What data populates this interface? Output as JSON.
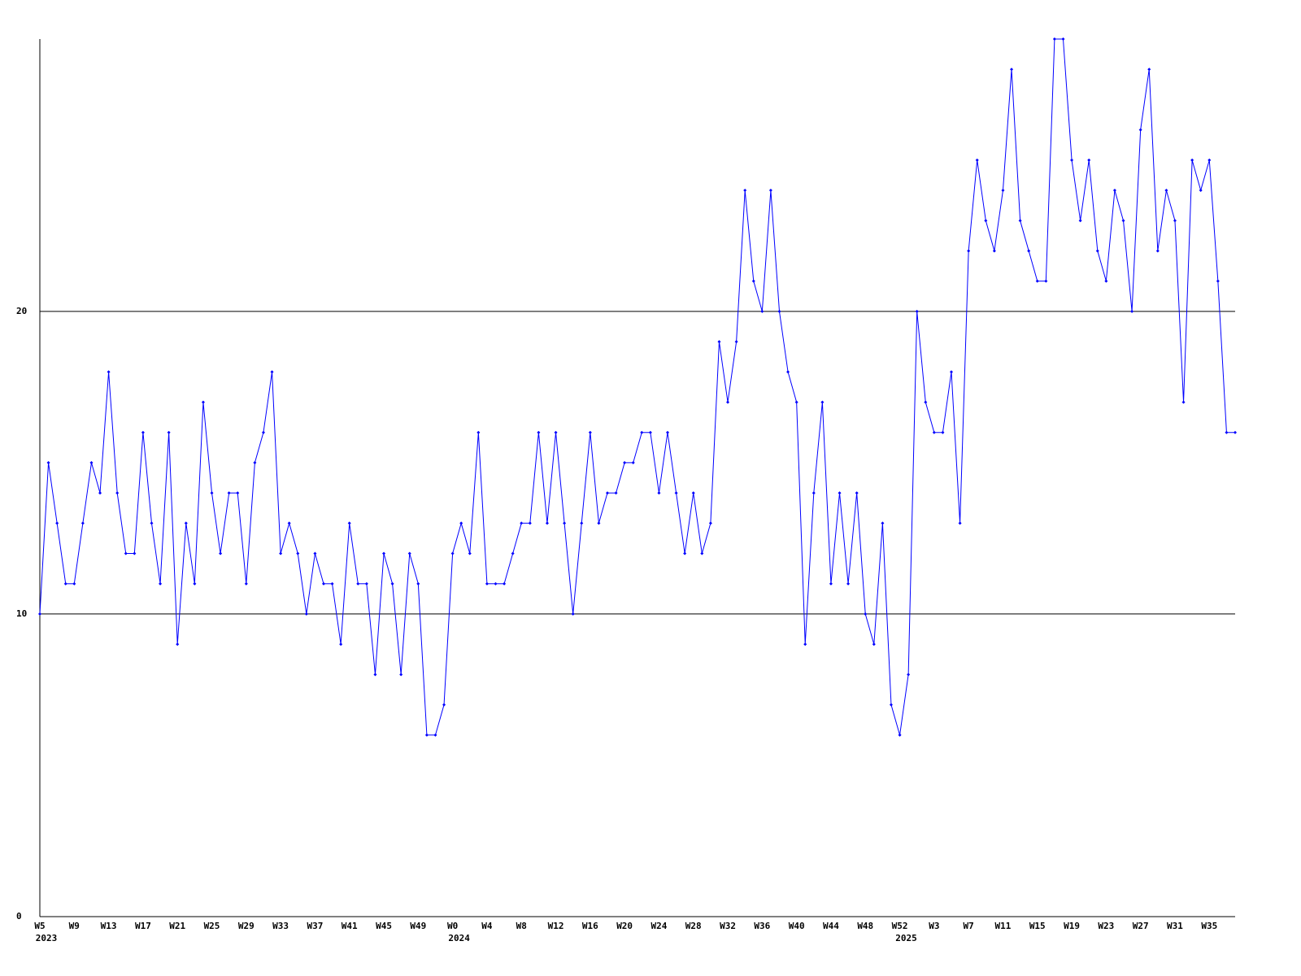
{
  "chart_data": {
    "type": "line",
    "categories": [
      "W5",
      null,
      null,
      null,
      "W9",
      null,
      null,
      null,
      "W13",
      null,
      null,
      null,
      "W17",
      null,
      null,
      null,
      "W21",
      null,
      null,
      null,
      "W25",
      null,
      null,
      null,
      "W29",
      null,
      null,
      null,
      "W33",
      null,
      null,
      null,
      "W37",
      null,
      null,
      null,
      "W41",
      null,
      null,
      null,
      "W45",
      null,
      null,
      null,
      "W49",
      null,
      null,
      null,
      "W0",
      null,
      null,
      null,
      "W4",
      null,
      null,
      null,
      "W8",
      null,
      null,
      null,
      "W12",
      null,
      null,
      null,
      "W16",
      null,
      null,
      null,
      "W20",
      null,
      null,
      null,
      "W24",
      null,
      null,
      null,
      "W28",
      null,
      null,
      null,
      "W32",
      null,
      null,
      null,
      "W36",
      null,
      null,
      null,
      "W40",
      null,
      null,
      null,
      "W44",
      null,
      null,
      null,
      "W48",
      null,
      null,
      null,
      "W52",
      null,
      null,
      null,
      "W3",
      null,
      null,
      null,
      "W7",
      null,
      null,
      null,
      "W11",
      null,
      null,
      null,
      "W15",
      null,
      null,
      null,
      "W19",
      null,
      null,
      null,
      "W23",
      null,
      null,
      null,
      "W27",
      null,
      null,
      null,
      "W31",
      null,
      null,
      null,
      "W35",
      null,
      null,
      null
    ],
    "years": [
      "2023",
      null,
      null,
      null,
      null,
      null,
      null,
      null,
      null,
      null,
      null,
      null,
      null,
      null,
      null,
      null,
      null,
      null,
      null,
      null,
      null,
      null,
      null,
      null,
      null,
      null,
      null,
      null,
      null,
      null,
      null,
      null,
      null,
      null,
      null,
      null,
      null,
      null,
      null,
      null,
      null,
      null,
      null,
      null,
      null,
      null,
      null,
      null,
      "2024",
      null,
      null,
      null,
      null,
      null,
      null,
      null,
      null,
      null,
      null,
      null,
      null,
      null,
      null,
      null,
      null,
      null,
      null,
      null,
      null,
      null,
      null,
      null,
      null,
      null,
      null,
      null,
      null,
      null,
      null,
      null,
      null,
      null,
      null,
      null,
      null,
      null,
      null,
      null,
      null,
      null,
      null,
      null,
      null,
      null,
      null,
      null,
      null,
      null,
      null,
      null,
      "2025",
      null,
      null,
      null,
      null,
      null,
      null,
      null,
      null,
      null,
      null,
      null,
      null,
      null,
      null,
      null,
      null,
      null,
      null,
      null,
      null,
      null,
      null,
      null,
      null,
      null,
      null,
      null,
      null,
      null,
      null,
      null,
      null,
      null,
      null,
      null,
      null,
      null,
      null,
      null
    ],
    "series": [
      {
        "color": "#0000ff",
        "values": [
          10,
          15,
          13,
          11,
          11,
          13,
          15,
          14,
          18,
          14,
          12,
          12,
          16,
          13,
          11,
          16,
          9,
          13,
          11,
          17,
          14,
          12,
          14,
          14,
          11,
          15,
          16,
          18,
          12,
          13,
          12,
          10,
          12,
          11,
          11,
          9,
          13,
          11,
          11,
          8,
          12,
          11,
          8,
          12,
          11,
          6,
          6,
          7,
          12,
          13,
          12,
          16,
          11,
          11,
          11,
          12,
          13,
          13,
          16,
          13,
          16,
          13,
          10,
          13,
          16,
          13,
          14,
          14,
          15,
          15,
          16,
          16,
          14,
          16,
          14,
          12,
          14,
          12,
          13,
          19,
          17,
          19,
          24,
          21,
          20,
          24,
          20,
          18,
          17,
          9,
          14,
          17,
          11,
          14,
          11,
          14,
          10,
          9,
          13,
          7,
          6,
          8,
          20,
          17,
          16,
          16,
          18,
          13,
          22,
          25,
          23,
          22,
          24,
          28,
          23,
          22,
          21,
          21,
          29,
          29,
          25,
          23,
          25,
          22,
          21,
          24,
          23,
          20,
          26,
          28,
          22,
          24,
          23,
          17,
          25,
          24,
          25,
          21,
          16,
          16
        ]
      }
    ],
    "ylim": [
      0,
      29
    ],
    "yticks": [
      0,
      10,
      20
    ],
    "grid": true
  }
}
